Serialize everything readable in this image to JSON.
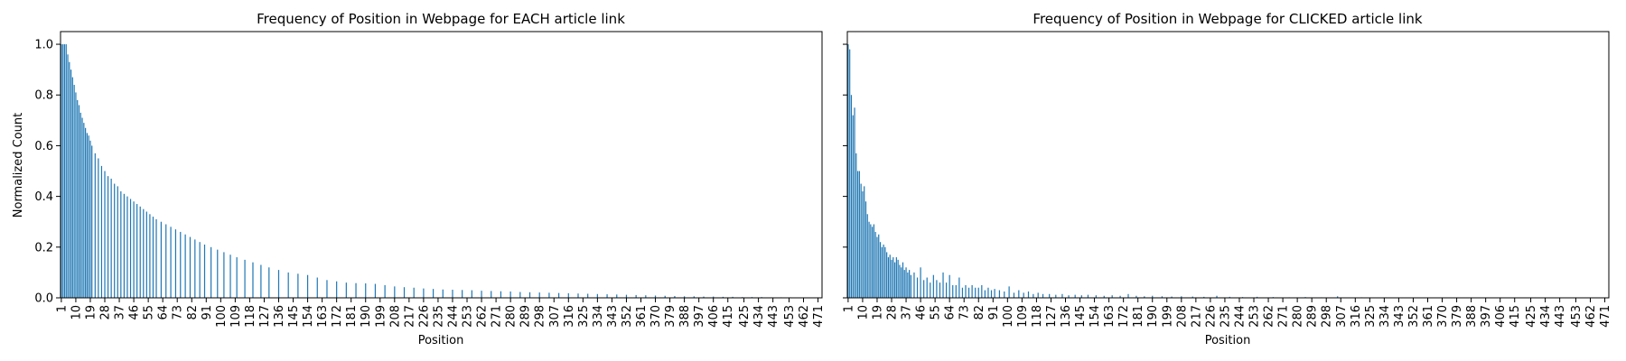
{
  "shared": {
    "ylabel": "Normalized Count",
    "xlabel": "Position",
    "bar_color": "#1f77b4"
  },
  "chart_data": [
    {
      "type": "bar",
      "title": "Frequency of Position in Webpage for EACH article link",
      "xlabel": "Position",
      "ylabel": "Normalized Count",
      "ylim": [
        0,
        1.05
      ],
      "yticks": [
        "0.0",
        "0.2",
        "0.4",
        "0.6",
        "0.8",
        "1.0"
      ],
      "x_range": [
        1,
        473
      ],
      "xticks": [
        1,
        10,
        19,
        28,
        37,
        46,
        55,
        64,
        73,
        82,
        91,
        100,
        109,
        118,
        127,
        136,
        145,
        154,
        163,
        172,
        181,
        190,
        199,
        208,
        217,
        226,
        235,
        244,
        253,
        262,
        271,
        280,
        289,
        298,
        307,
        316,
        325,
        334,
        343,
        352,
        361,
        370,
        379,
        388,
        397,
        406,
        415,
        425,
        434,
        443,
        453,
        462,
        471
      ],
      "grid": false,
      "color": "#1f77b4",
      "bars": [
        {
          "x": 1,
          "y": 1.0
        },
        {
          "x": 2,
          "y": 1.0
        },
        {
          "x": 3,
          "y": 1.0
        },
        {
          "x": 4,
          "y": 1.0
        },
        {
          "x": 5,
          "y": 0.96
        },
        {
          "x": 6,
          "y": 0.93
        },
        {
          "x": 7,
          "y": 0.9
        },
        {
          "x": 8,
          "y": 0.87
        },
        {
          "x": 9,
          "y": 0.84
        },
        {
          "x": 10,
          "y": 0.81
        },
        {
          "x": 11,
          "y": 0.78
        },
        {
          "x": 12,
          "y": 0.76
        },
        {
          "x": 13,
          "y": 0.73
        },
        {
          "x": 14,
          "y": 0.71
        },
        {
          "x": 15,
          "y": 0.69
        },
        {
          "x": 16,
          "y": 0.67
        },
        {
          "x": 17,
          "y": 0.65
        },
        {
          "x": 18,
          "y": 0.64
        },
        {
          "x": 19,
          "y": 0.62
        },
        {
          "x": 20,
          "y": 0.6
        },
        {
          "x": 22,
          "y": 0.57
        },
        {
          "x": 24,
          "y": 0.55
        },
        {
          "x": 26,
          "y": 0.52
        },
        {
          "x": 28,
          "y": 0.5
        },
        {
          "x": 30,
          "y": 0.48
        },
        {
          "x": 32,
          "y": 0.47
        },
        {
          "x": 34,
          "y": 0.45
        },
        {
          "x": 36,
          "y": 0.44
        },
        {
          "x": 38,
          "y": 0.42
        },
        {
          "x": 40,
          "y": 0.41
        },
        {
          "x": 42,
          "y": 0.4
        },
        {
          "x": 44,
          "y": 0.39
        },
        {
          "x": 46,
          "y": 0.38
        },
        {
          "x": 48,
          "y": 0.37
        },
        {
          "x": 50,
          "y": 0.36
        },
        {
          "x": 52,
          "y": 0.35
        },
        {
          "x": 54,
          "y": 0.34
        },
        {
          "x": 56,
          "y": 0.33
        },
        {
          "x": 58,
          "y": 0.32
        },
        {
          "x": 60,
          "y": 0.31
        },
        {
          "x": 63,
          "y": 0.3
        },
        {
          "x": 66,
          "y": 0.29
        },
        {
          "x": 69,
          "y": 0.28
        },
        {
          "x": 72,
          "y": 0.27
        },
        {
          "x": 75,
          "y": 0.26
        },
        {
          "x": 78,
          "y": 0.25
        },
        {
          "x": 81,
          "y": 0.24
        },
        {
          "x": 84,
          "y": 0.23
        },
        {
          "x": 87,
          "y": 0.22
        },
        {
          "x": 90,
          "y": 0.21
        },
        {
          "x": 94,
          "y": 0.2
        },
        {
          "x": 98,
          "y": 0.19
        },
        {
          "x": 102,
          "y": 0.18
        },
        {
          "x": 106,
          "y": 0.17
        },
        {
          "x": 110,
          "y": 0.16
        },
        {
          "x": 115,
          "y": 0.15
        },
        {
          "x": 120,
          "y": 0.14
        },
        {
          "x": 125,
          "y": 0.13
        },
        {
          "x": 130,
          "y": 0.12
        },
        {
          "x": 136,
          "y": 0.11
        },
        {
          "x": 142,
          "y": 0.1
        },
        {
          "x": 148,
          "y": 0.095
        },
        {
          "x": 154,
          "y": 0.09
        },
        {
          "x": 160,
          "y": 0.08
        },
        {
          "x": 166,
          "y": 0.07
        },
        {
          "x": 172,
          "y": 0.065
        },
        {
          "x": 178,
          "y": 0.06
        },
        {
          "x": 184,
          "y": 0.058
        },
        {
          "x": 190,
          "y": 0.057
        },
        {
          "x": 196,
          "y": 0.055
        },
        {
          "x": 202,
          "y": 0.05
        },
        {
          "x": 208,
          "y": 0.045
        },
        {
          "x": 214,
          "y": 0.042
        },
        {
          "x": 220,
          "y": 0.04
        },
        {
          "x": 226,
          "y": 0.037
        },
        {
          "x": 232,
          "y": 0.035
        },
        {
          "x": 238,
          "y": 0.033
        },
        {
          "x": 244,
          "y": 0.032
        },
        {
          "x": 250,
          "y": 0.031
        },
        {
          "x": 256,
          "y": 0.03
        },
        {
          "x": 262,
          "y": 0.028
        },
        {
          "x": 268,
          "y": 0.027
        },
        {
          "x": 274,
          "y": 0.026
        },
        {
          "x": 280,
          "y": 0.025
        },
        {
          "x": 286,
          "y": 0.023
        },
        {
          "x": 292,
          "y": 0.022
        },
        {
          "x": 298,
          "y": 0.021
        },
        {
          "x": 304,
          "y": 0.02
        },
        {
          "x": 310,
          "y": 0.019
        },
        {
          "x": 316,
          "y": 0.018
        },
        {
          "x": 322,
          "y": 0.017
        },
        {
          "x": 328,
          "y": 0.016
        },
        {
          "x": 334,
          "y": 0.015
        },
        {
          "x": 340,
          "y": 0.014
        },
        {
          "x": 346,
          "y": 0.013
        },
        {
          "x": 352,
          "y": 0.012
        },
        {
          "x": 358,
          "y": 0.011
        },
        {
          "x": 364,
          "y": 0.01
        },
        {
          "x": 370,
          "y": 0.009
        },
        {
          "x": 376,
          "y": 0.008
        },
        {
          "x": 382,
          "y": 0.007
        },
        {
          "x": 388,
          "y": 0.006
        },
        {
          "x": 394,
          "y": 0.006
        },
        {
          "x": 400,
          "y": 0.005
        },
        {
          "x": 406,
          "y": 0.005
        },
        {
          "x": 412,
          "y": 0.004
        },
        {
          "x": 418,
          "y": 0.004
        },
        {
          "x": 424,
          "y": 0.003
        },
        {
          "x": 430,
          "y": 0.003
        },
        {
          "x": 436,
          "y": 0.003
        },
        {
          "x": 442,
          "y": 0.002
        },
        {
          "x": 448,
          "y": 0.002
        },
        {
          "x": 454,
          "y": 0.002
        },
        {
          "x": 460,
          "y": 0.001
        },
        {
          "x": 466,
          "y": 0.001
        },
        {
          "x": 471,
          "y": 0.001
        }
      ]
    },
    {
      "type": "bar",
      "title": "Frequency of Position in Webpage for CLICKED article link",
      "xlabel": "Position",
      "ylabel": "",
      "ylim": [
        0,
        1.05
      ],
      "yticks": [
        "0.0",
        "0.2",
        "0.4",
        "0.6",
        "0.8",
        "1.0"
      ],
      "show_ytick_labels": false,
      "x_range": [
        1,
        473
      ],
      "xticks": [
        1,
        10,
        19,
        28,
        37,
        46,
        55,
        64,
        73,
        82,
        91,
        100,
        109,
        118,
        127,
        136,
        145,
        154,
        163,
        172,
        181,
        190,
        199,
        208,
        217,
        226,
        235,
        244,
        253,
        262,
        271,
        280,
        289,
        298,
        307,
        316,
        325,
        334,
        343,
        352,
        361,
        370,
        379,
        388,
        397,
        406,
        415,
        425,
        434,
        443,
        453,
        462,
        471
      ],
      "grid": false,
      "color": "#1f77b4",
      "bars": [
        {
          "x": 1,
          "y": 1.0
        },
        {
          "x": 2,
          "y": 0.98
        },
        {
          "x": 3,
          "y": 0.8
        },
        {
          "x": 4,
          "y": 0.72
        },
        {
          "x": 5,
          "y": 0.75
        },
        {
          "x": 6,
          "y": 0.57
        },
        {
          "x": 7,
          "y": 0.5
        },
        {
          "x": 8,
          "y": 0.5
        },
        {
          "x": 9,
          "y": 0.45
        },
        {
          "x": 10,
          "y": 0.42
        },
        {
          "x": 11,
          "y": 0.44
        },
        {
          "x": 12,
          "y": 0.38
        },
        {
          "x": 13,
          "y": 0.33
        },
        {
          "x": 14,
          "y": 0.3
        },
        {
          "x": 15,
          "y": 0.29
        },
        {
          "x": 16,
          "y": 0.28
        },
        {
          "x": 17,
          "y": 0.29
        },
        {
          "x": 18,
          "y": 0.26
        },
        {
          "x": 19,
          "y": 0.24
        },
        {
          "x": 20,
          "y": 0.25
        },
        {
          "x": 21,
          "y": 0.22
        },
        {
          "x": 22,
          "y": 0.2
        },
        {
          "x": 23,
          "y": 0.21
        },
        {
          "x": 24,
          "y": 0.2
        },
        {
          "x": 25,
          "y": 0.18
        },
        {
          "x": 26,
          "y": 0.16
        },
        {
          "x": 27,
          "y": 0.17
        },
        {
          "x": 28,
          "y": 0.15
        },
        {
          "x": 29,
          "y": 0.16
        },
        {
          "x": 30,
          "y": 0.14
        },
        {
          "x": 31,
          "y": 0.16
        },
        {
          "x": 32,
          "y": 0.15
        },
        {
          "x": 33,
          "y": 0.13
        },
        {
          "x": 34,
          "y": 0.12
        },
        {
          "x": 35,
          "y": 0.14
        },
        {
          "x": 36,
          "y": 0.11
        },
        {
          "x": 37,
          "y": 0.12
        },
        {
          "x": 38,
          "y": 0.1
        },
        {
          "x": 39,
          "y": 0.11
        },
        {
          "x": 40,
          "y": 0.09
        },
        {
          "x": 42,
          "y": 0.1
        },
        {
          "x": 44,
          "y": 0.08
        },
        {
          "x": 46,
          "y": 0.12
        },
        {
          "x": 48,
          "y": 0.07
        },
        {
          "x": 50,
          "y": 0.08
        },
        {
          "x": 52,
          "y": 0.06
        },
        {
          "x": 54,
          "y": 0.09
        },
        {
          "x": 56,
          "y": 0.07
        },
        {
          "x": 58,
          "y": 0.06
        },
        {
          "x": 60,
          "y": 0.1
        },
        {
          "x": 62,
          "y": 0.06
        },
        {
          "x": 64,
          "y": 0.09
        },
        {
          "x": 66,
          "y": 0.05
        },
        {
          "x": 68,
          "y": 0.05
        },
        {
          "x": 70,
          "y": 0.08
        },
        {
          "x": 72,
          "y": 0.04
        },
        {
          "x": 74,
          "y": 0.05
        },
        {
          "x": 76,
          "y": 0.04
        },
        {
          "x": 78,
          "y": 0.05
        },
        {
          "x": 80,
          "y": 0.04
        },
        {
          "x": 82,
          "y": 0.04
        },
        {
          "x": 84,
          "y": 0.05
        },
        {
          "x": 86,
          "y": 0.03
        },
        {
          "x": 88,
          "y": 0.04
        },
        {
          "x": 90,
          "y": 0.03
        },
        {
          "x": 92,
          "y": 0.035
        },
        {
          "x": 95,
          "y": 0.03
        },
        {
          "x": 98,
          "y": 0.025
        },
        {
          "x": 101,
          "y": 0.045
        },
        {
          "x": 104,
          "y": 0.02
        },
        {
          "x": 107,
          "y": 0.03
        },
        {
          "x": 110,
          "y": 0.02
        },
        {
          "x": 113,
          "y": 0.025
        },
        {
          "x": 116,
          "y": 0.015
        },
        {
          "x": 119,
          "y": 0.02
        },
        {
          "x": 122,
          "y": 0.015
        },
        {
          "x": 126,
          "y": 0.015
        },
        {
          "x": 130,
          "y": 0.012
        },
        {
          "x": 134,
          "y": 0.015
        },
        {
          "x": 138,
          "y": 0.01
        },
        {
          "x": 142,
          "y": 0.012
        },
        {
          "x": 146,
          "y": 0.01
        },
        {
          "x": 150,
          "y": 0.012
        },
        {
          "x": 155,
          "y": 0.01
        },
        {
          "x": 160,
          "y": 0.008
        },
        {
          "x": 165,
          "y": 0.01
        },
        {
          "x": 170,
          "y": 0.008
        },
        {
          "x": 175,
          "y": 0.015
        },
        {
          "x": 180,
          "y": 0.008
        },
        {
          "x": 185,
          "y": 0.006
        },
        {
          "x": 190,
          "y": 0.008
        },
        {
          "x": 196,
          "y": 0.006
        },
        {
          "x": 202,
          "y": 0.005
        },
        {
          "x": 208,
          "y": 0.006
        },
        {
          "x": 215,
          "y": 0.005
        },
        {
          "x": 222,
          "y": 0.004
        },
        {
          "x": 230,
          "y": 0.008
        },
        {
          "x": 238,
          "y": 0.004
        },
        {
          "x": 246,
          "y": 0.003
        },
        {
          "x": 255,
          "y": 0.004
        },
        {
          "x": 265,
          "y": 0.003
        },
        {
          "x": 275,
          "y": 0.002
        },
        {
          "x": 285,
          "y": 0.003
        },
        {
          "x": 295,
          "y": 0.002
        },
        {
          "x": 305,
          "y": 0.006
        },
        {
          "x": 320,
          "y": 0.002
        },
        {
          "x": 335,
          "y": 0.002
        },
        {
          "x": 350,
          "y": 0.001
        },
        {
          "x": 370,
          "y": 0.001
        },
        {
          "x": 395,
          "y": 0.001
        },
        {
          "x": 420,
          "y": 0.001
        },
        {
          "x": 450,
          "y": 0.001
        }
      ]
    }
  ]
}
